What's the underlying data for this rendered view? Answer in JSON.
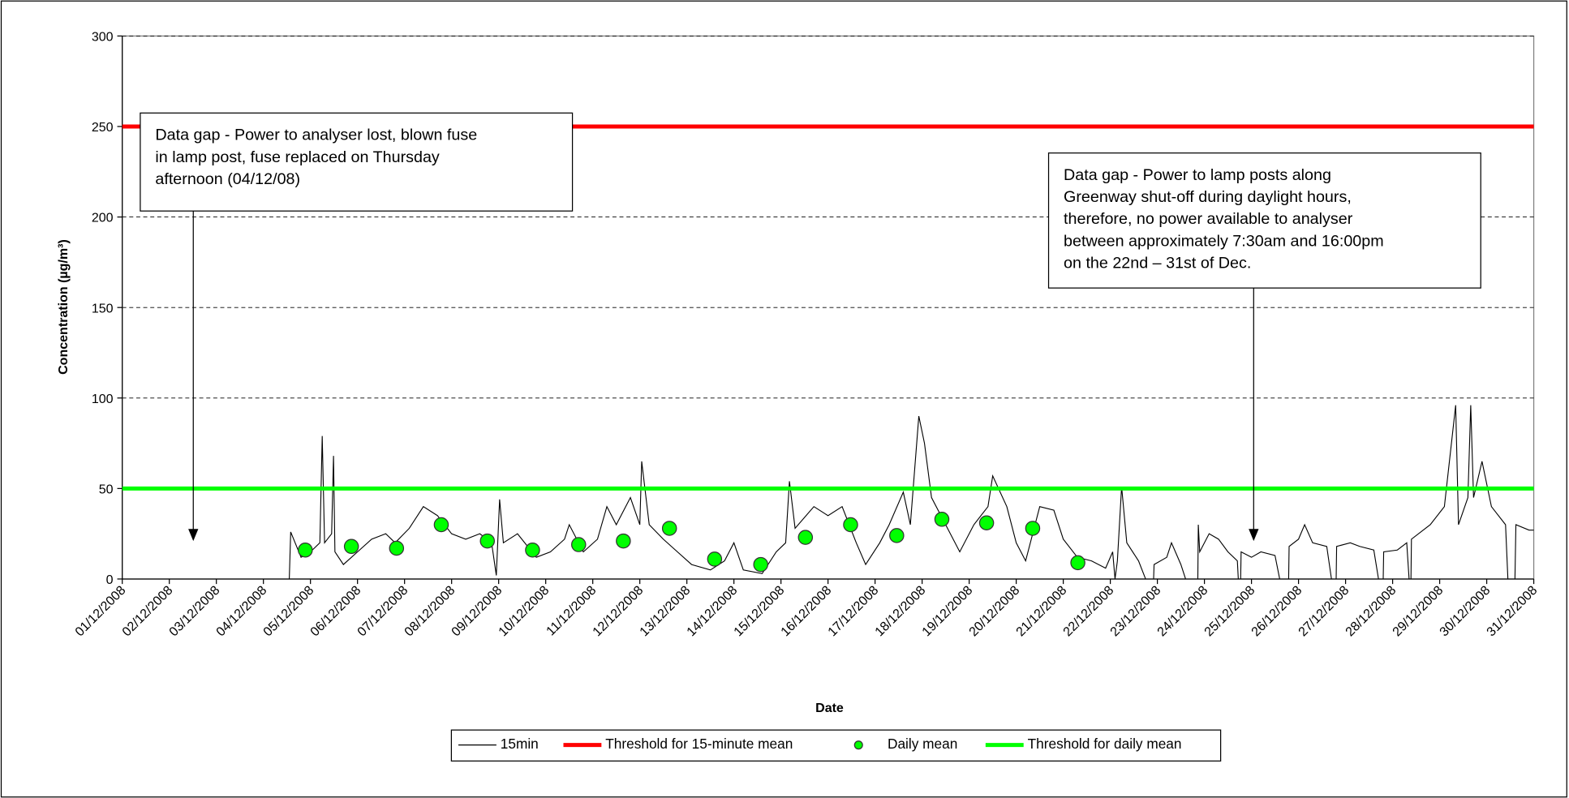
{
  "chart_data": {
    "type": "line",
    "xlabel": "Date",
    "ylabel": "Concentration (µg/m³)",
    "xlim": [
      0,
      30
    ],
    "xticks": [
      {
        "value": 0,
        "label": "01/12/2008"
      },
      {
        "value": 1,
        "label": "02/12/2008"
      },
      {
        "value": 2,
        "label": "03/12/2008"
      },
      {
        "value": 3,
        "label": "04/12/2008"
      },
      {
        "value": 4,
        "label": "05/12/2008"
      },
      {
        "value": 5,
        "label": "06/12/2008"
      },
      {
        "value": 6,
        "label": "07/12/2008"
      },
      {
        "value": 7,
        "label": "08/12/2008"
      },
      {
        "value": 8,
        "label": "09/12/2008"
      },
      {
        "value": 9,
        "label": "10/12/2008"
      },
      {
        "value": 10,
        "label": "11/12/2008"
      },
      {
        "value": 11,
        "label": "12/12/2008"
      },
      {
        "value": 12,
        "label": "13/12/2008"
      },
      {
        "value": 13,
        "label": "14/12/2008"
      },
      {
        "value": 14,
        "label": "15/12/2008"
      },
      {
        "value": 15,
        "label": "16/12/2008"
      },
      {
        "value": 16,
        "label": "17/12/2008"
      },
      {
        "value": 17,
        "label": "18/12/2008"
      },
      {
        "value": 18,
        "label": "19/12/2008"
      },
      {
        "value": 19,
        "label": "20/12/2008"
      },
      {
        "value": 20,
        "label": "21/12/2008"
      },
      {
        "value": 21,
        "label": "22/12/2008"
      },
      {
        "value": 22,
        "label": "23/12/2008"
      },
      {
        "value": 23,
        "label": "24/12/2008"
      },
      {
        "value": 24,
        "label": "25/12/2008"
      },
      {
        "value": 25,
        "label": "26/12/2008"
      },
      {
        "value": 26,
        "label": "27/12/2008"
      },
      {
        "value": 27,
        "label": "28/12/2008"
      },
      {
        "value": 28,
        "label": "29/12/2008"
      },
      {
        "value": 29,
        "label": "30/12/2008"
      },
      {
        "value": 30,
        "label": "31/12/2008"
      }
    ],
    "ylim": [
      0,
      300
    ],
    "yticks": [
      0,
      50,
      100,
      150,
      200,
      250,
      300
    ],
    "grid": true,
    "legend": "bottom",
    "series": [
      {
        "name": "15min",
        "color": "#000000",
        "style": "line",
        "x": [
          3.55,
          3.58,
          3.8,
          4.0,
          4.2,
          4.25,
          4.3,
          4.45,
          4.49,
          4.52,
          4.7,
          5.0,
          5.3,
          5.6,
          5.8,
          6.1,
          6.4,
          6.7,
          7.0,
          7.3,
          7.6,
          7.85,
          7.95,
          8.02,
          8.1,
          8.4,
          8.8,
          9.1,
          9.4,
          9.5,
          9.8,
          10.1,
          10.3,
          10.5,
          10.8,
          11.0,
          11.04,
          11.2,
          11.5,
          11.8,
          12.1,
          12.5,
          12.8,
          13.0,
          13.2,
          13.6,
          13.9,
          14.1,
          14.18,
          14.3,
          14.7,
          15.0,
          15.3,
          15.6,
          15.8,
          16.1,
          16.3,
          16.6,
          16.75,
          16.93,
          17.05,
          17.2,
          17.5,
          17.8,
          18.1,
          18.4,
          18.5,
          18.8,
          19.0,
          19.2,
          19.5,
          19.8,
          20.0,
          20.3,
          20.6,
          20.9,
          21.05,
          21.1,
          21.15,
          21.24,
          21.35,
          21.6,
          21.75,
          21.8,
          21.92,
          21.93,
          22.2,
          22.3,
          22.5,
          22.6,
          22.7,
          22.86,
          22.87,
          22.9,
          23.1,
          23.3,
          23.5,
          23.7,
          23.72,
          23.74,
          23.77,
          23.78,
          24.0,
          24.2,
          24.5,
          24.6,
          24.7,
          24.79,
          24.8,
          25.0,
          25.13,
          25.3,
          25.6,
          25.7,
          25.75,
          25.8,
          25.81,
          26.1,
          26.3,
          26.6,
          26.7,
          26.75,
          26.8,
          26.81,
          27.1,
          27.3,
          27.35,
          27.37,
          27.39,
          27.4,
          27.8,
          28.1,
          28.34,
          28.4,
          28.6,
          28.66,
          28.72,
          28.9,
          29.1,
          29.4,
          29.45,
          29.5,
          29.6,
          29.62,
          29.9,
          30.0
        ],
        "values": [
          0,
          26,
          12,
          15,
          20,
          79,
          20,
          25,
          68,
          15,
          8,
          15,
          22,
          25,
          20,
          28,
          40,
          35,
          25,
          22,
          25,
          20,
          2,
          44,
          20,
          25,
          12,
          15,
          22,
          30,
          15,
          22,
          40,
          30,
          45,
          30,
          65,
          30,
          22,
          15,
          8,
          5,
          10,
          20,
          5,
          3,
          15,
          20,
          54,
          28,
          40,
          35,
          40,
          20,
          8,
          20,
          30,
          48,
          30,
          90,
          75,
          45,
          30,
          15,
          30,
          40,
          57,
          40,
          20,
          10,
          40,
          38,
          22,
          12,
          10,
          6,
          15,
          0,
          10,
          51,
          20,
          10,
          0,
          null,
          0,
          8,
          12,
          20,
          8,
          0,
          null,
          0,
          30,
          15,
          25,
          22,
          15,
          10,
          0,
          null,
          0,
          15,
          12,
          15,
          13,
          0,
          null,
          0,
          18,
          22,
          30,
          20,
          18,
          0,
          null,
          0,
          18,
          20,
          18,
          16,
          0,
          null,
          0,
          15,
          16,
          20,
          0,
          null,
          0,
          22,
          30,
          40,
          96,
          30,
          45,
          96,
          45,
          65,
          40,
          30,
          0,
          null,
          0,
          30,
          27,
          27
        ]
      },
      {
        "name": "Threshold for 15-minute mean",
        "color": "#ff0000",
        "style": "hline",
        "values": [
          250
        ]
      },
      {
        "name": "Daily mean",
        "color": "#00ff00",
        "style": "marker",
        "x": [
          3.89,
          4.87,
          5.83,
          6.78,
          7.76,
          8.72,
          9.7,
          10.65,
          11.63,
          12.59,
          13.57,
          14.52,
          15.48,
          16.46,
          17.42,
          18.37,
          19.35,
          20.31
        ],
        "values": [
          16,
          18,
          17,
          30,
          21,
          16,
          19,
          21,
          28,
          11,
          8,
          23,
          30,
          24,
          33,
          31,
          28,
          9
        ]
      },
      {
        "name": "Threshold for daily mean",
        "color": "#00ff00",
        "style": "hline",
        "values": [
          50
        ]
      }
    ],
    "annotations": [
      {
        "lines": [
          "Data gap - Power to analyser lost, blown fuse",
          "in lamp post, fuse replaced on Thursday",
          "afternoon (04/12/08)"
        ]
      },
      {
        "lines": [
          "Data gap - Power to lamp posts along",
          "Greenway shut-off during daylight hours,",
          "therefore, no power available to analyser",
          "between approximately 7:30am and 16:00pm",
          "on the 22nd – 31st of Dec."
        ]
      }
    ]
  }
}
